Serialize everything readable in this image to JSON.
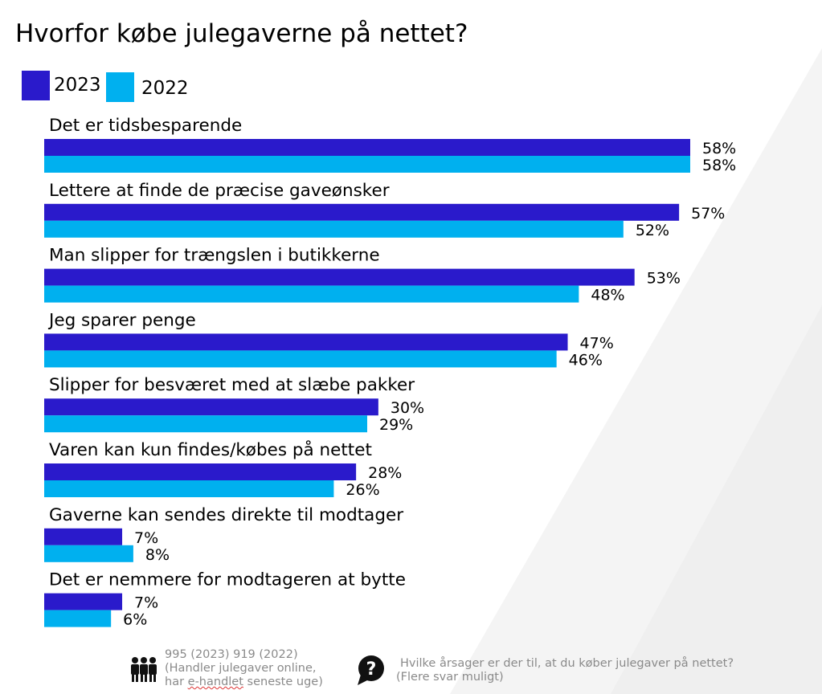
{
  "title": "Hvorfor købe julegaverne på nettet?",
  "colors": {
    "series_2023": "#2a1acb",
    "series_2022": "#00b0ef"
  },
  "chart_data": {
    "type": "bar",
    "orientation": "horizontal",
    "title": "Hvorfor købe julegaverne på nettet?",
    "categories": [
      "Det er tidsbesparende",
      "Lettere at finde de præcise gaveønsker",
      "Man slipper for trængslen i butikkerne",
      "Jeg sparer penge",
      "Slipper for besværet med at slæbe pakker",
      "Varen kan kun findes/købes på nettet",
      "Gaverne kan sendes direkte til modtager",
      "Det er nemmere for modtageren at bytte"
    ],
    "series": [
      {
        "name": "2023",
        "color": "#2a1acb",
        "values": [
          58,
          57,
          53,
          47,
          30,
          28,
          7,
          7
        ],
        "labels": [
          "58%",
          "57%",
          "53%",
          "47%",
          "30%",
          "28%",
          "7%",
          "7%"
        ]
      },
      {
        "name": "2022",
        "color": "#00b0ef",
        "values": [
          58,
          52,
          48,
          46,
          29,
          26,
          8,
          6
        ],
        "labels": [
          "58%",
          "52%",
          "48%",
          "46%",
          "29%",
          "26%",
          "8%",
          "6%"
        ]
      }
    ],
    "unit": "%",
    "legend": "top-left",
    "grid": false
  },
  "footer": {
    "base_line1": "995 (2023) 919 (2022)",
    "base_line2": "(Handler julegaver online,",
    "base_line3_a": "har ",
    "base_line3_b": "e-handlet",
    "base_line3_c": " seneste uge)",
    "question_line1": "Hvilke årsager er der til, at du køber julegaver på nettet?",
    "question_line2": "(Flere svar muligt)",
    "base_icon": "people-group-icon",
    "question_icon": "question-bubble-icon"
  }
}
